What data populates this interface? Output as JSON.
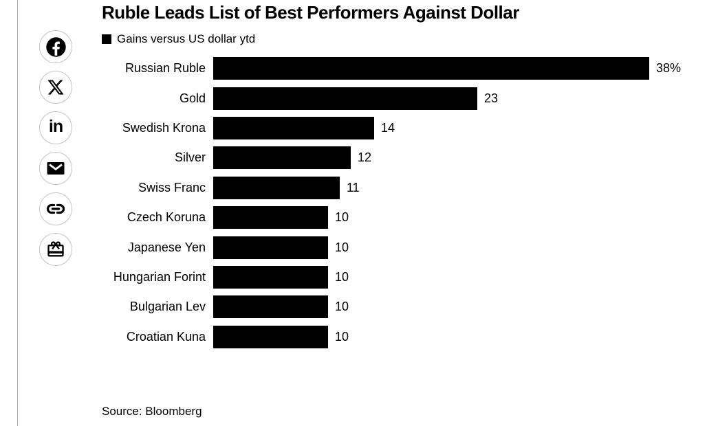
{
  "colors": {
    "background": "#ffffff",
    "bar": "#000000",
    "text": "#000000",
    "divider": "#aaaaaa",
    "icon_circle_border": "#c4c4c4",
    "icon_glyph": "#000000"
  },
  "share_bar": {
    "items": [
      {
        "name": "facebook",
        "icon": "facebook-icon"
      },
      {
        "name": "x",
        "icon": "x-icon"
      },
      {
        "name": "linkedin",
        "icon": "linkedin-icon"
      },
      {
        "name": "email",
        "icon": "email-icon"
      },
      {
        "name": "copy-link",
        "icon": "link-icon"
      },
      {
        "name": "gift",
        "icon": "gift-icon"
      }
    ],
    "linkedin_glyph": "in"
  },
  "chart_data": {
    "type": "bar",
    "orientation": "horizontal",
    "title": "Ruble Leads List of Best Performers Against Dollar",
    "legend": {
      "label": "Gains versus US dollar ytd",
      "swatch_color": "#000000"
    },
    "legend_position": "top-left",
    "categories": [
      "Russian Ruble",
      "Gold",
      "Swedish Krona",
      "Silver",
      "Swiss Franc",
      "Czech Koruna",
      "Japanese Yen",
      "Hungarian Forint",
      "Bulgarian Lev",
      "Croatian Kuna"
    ],
    "values": [
      38,
      23,
      14,
      12,
      11,
      10,
      10,
      10,
      10,
      10
    ],
    "value_labels": [
      "38%",
      "23",
      "14",
      "12",
      "11",
      "10",
      "10",
      "10",
      "10",
      "10"
    ],
    "unit": "percent gain vs USD ytd",
    "xlim": [
      0,
      38
    ],
    "bar_color": "#000000",
    "grid": false,
    "source": "Source: Bloomberg"
  }
}
